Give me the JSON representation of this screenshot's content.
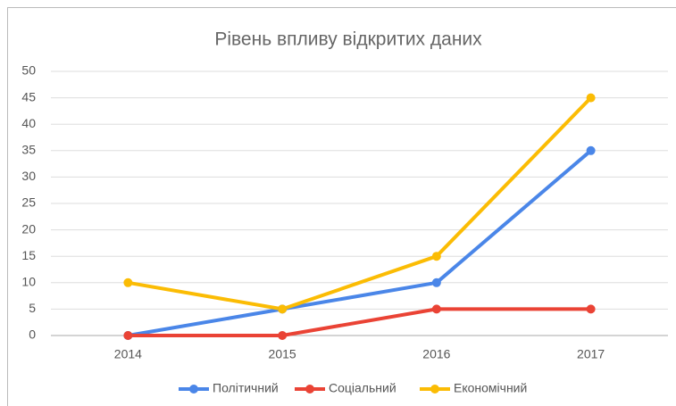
{
  "chart_data": {
    "type": "line",
    "title": "Рівень впливу відкритих даних",
    "categories": [
      "2014",
      "2015",
      "2016",
      "2017"
    ],
    "series": [
      {
        "name": "Політичний",
        "color": "#4a86e8",
        "values": [
          0,
          5,
          10,
          35
        ]
      },
      {
        "name": "Соціальний",
        "color": "#ea4335",
        "values": [
          0,
          0,
          5,
          5
        ]
      },
      {
        "name": "Економічний",
        "color": "#fbbc04",
        "values": [
          10,
          5,
          15,
          45
        ]
      }
    ],
    "ylim": [
      0,
      50
    ],
    "yticks": [
      0,
      5,
      10,
      15,
      20,
      25,
      30,
      35,
      40,
      45,
      50
    ],
    "grid": true,
    "legend": "bottom"
  }
}
